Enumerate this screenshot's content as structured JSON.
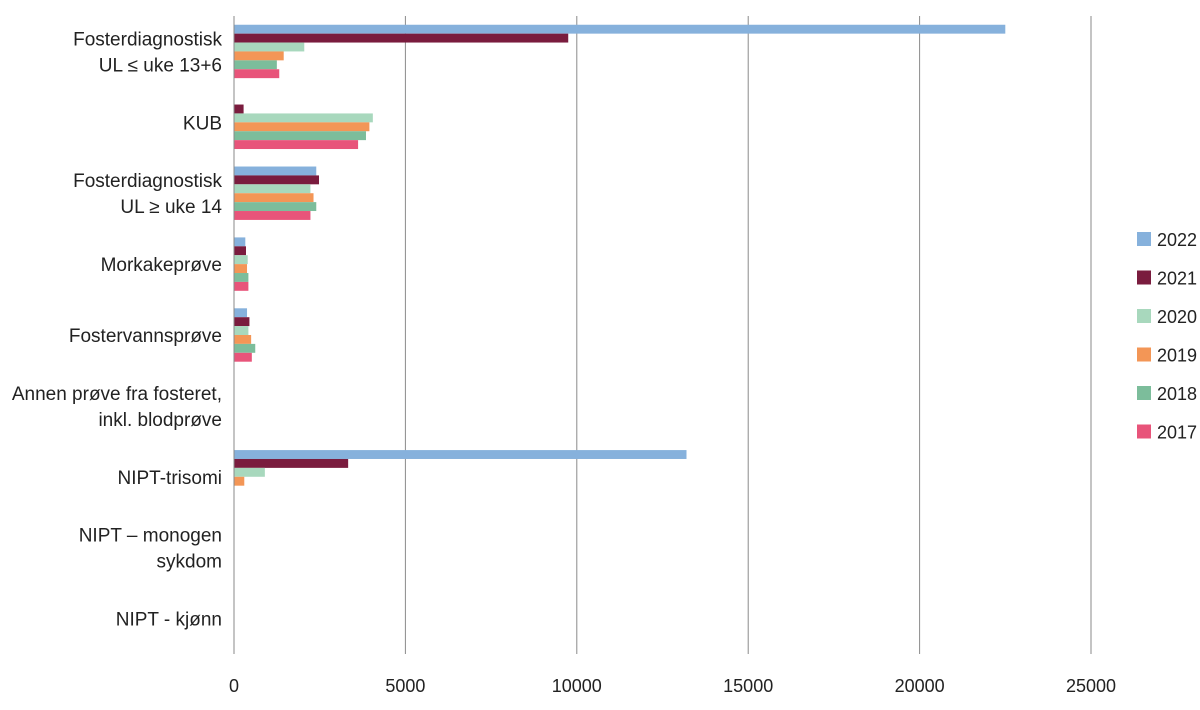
{
  "chart_data": {
    "type": "bar",
    "orientation": "horizontal",
    "categories": [
      [
        "Fosterdiagnostisk",
        "UL ≤ uke 13+6"
      ],
      [
        "KUB"
      ],
      [
        "Fosterdiagnostisk",
        "UL ≥ uke 14"
      ],
      [
        "Morkakeprøve"
      ],
      [
        "Fostervannsprøve"
      ],
      [
        "Annen prøve fra fosteret,",
        "inkl. blodprøve"
      ],
      [
        "NIPT-trisomi"
      ],
      [
        "NIPT – monogen",
        "sykdom"
      ],
      [
        "NIPT - kjønn"
      ]
    ],
    "series": [
      {
        "name": "2022",
        "color": "#86b1dc",
        "values": [
          22500,
          0,
          2400,
          330,
          380,
          0,
          13200,
          0,
          0
        ]
      },
      {
        "name": "2021",
        "color": "#7a1c3e",
        "values": [
          9750,
          280,
          2480,
          350,
          450,
          0,
          3330,
          0,
          0
        ]
      },
      {
        "name": "2020",
        "color": "#a8d8bd",
        "values": [
          2050,
          4050,
          2230,
          400,
          420,
          0,
          900,
          0,
          0
        ]
      },
      {
        "name": "2019",
        "color": "#f39656",
        "values": [
          1450,
          3950,
          2320,
          380,
          500,
          0,
          300,
          0,
          0
        ]
      },
      {
        "name": "2018",
        "color": "#7cbd9b",
        "values": [
          1250,
          3850,
          2400,
          420,
          620,
          0,
          0,
          0,
          0
        ]
      },
      {
        "name": "2017",
        "color": "#e8547a",
        "values": [
          1320,
          3620,
          2230,
          420,
          520,
          0,
          0,
          0,
          0
        ]
      }
    ],
    "xticks": [
      "0",
      "5000",
      "10000",
      "15000",
      "20000",
      "25000"
    ],
    "xlim": [
      0,
      25000
    ],
    "grid": "vertical",
    "legend": "right",
    "title": "",
    "xlabel": "",
    "ylabel": ""
  }
}
